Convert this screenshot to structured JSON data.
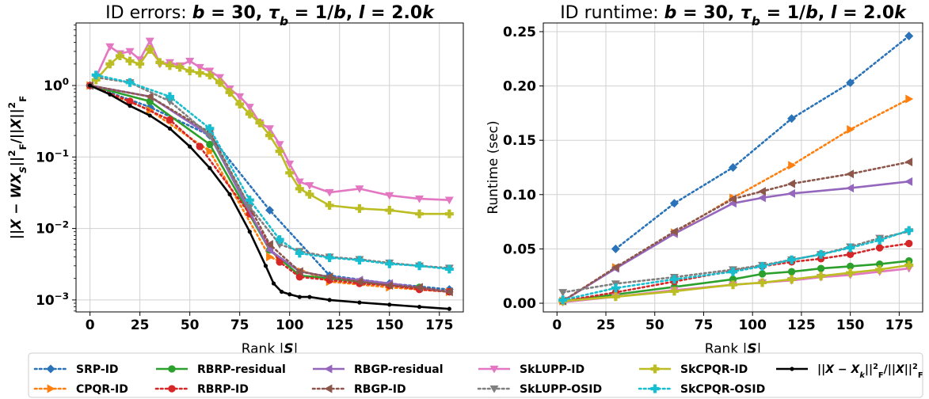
{
  "colors": {
    "SRP-ID": "#2a73b8",
    "CPQR-ID": "#ff7f0e",
    "RBRP-residual": "#2ca02c",
    "RBRP-ID": "#d62728",
    "RBGP-residual": "#9467bd",
    "RBGP-ID": "#8c564b",
    "SkLUPP-ID": "#e377c2",
    "SkLUPP-OSID": "#7f7f7f",
    "SkCPQR-ID": "#bcbd22",
    "SkCPQR-OSID": "#17becf",
    "Opt": "#000000"
  },
  "chart_data": [
    {
      "type": "line",
      "title_prefix": "ID errors: ",
      "title_math": "b = 30, τ_b = 1/b, l = 2.0k",
      "xlabel": "Rank |S|",
      "ylabel": "||X − WX_S||²_F/||X||²_F",
      "yscale": "log",
      "xlim": [
        -7,
        187
      ],
      "ylim": [
        0.00068,
        7.5
      ],
      "xticks": [
        0,
        25,
        50,
        75,
        100,
        125,
        150,
        175
      ],
      "yticks": [
        0.001,
        0.01,
        0.1,
        1
      ],
      "ytick_labels": [
        "10⁻³",
        "10⁻²",
        "10⁻¹",
        "10⁰"
      ],
      "grid": true,
      "series": [
        {
          "key": "SRP-ID",
          "name": "SRP-ID",
          "style": "dotted",
          "marker": "D",
          "x": [
            0,
            30,
            60,
            90,
            120,
            150,
            180
          ],
          "y": [
            1.0,
            0.5,
            0.2,
            0.018,
            0.0022,
            0.0017,
            0.0014
          ]
        },
        {
          "key": "CPQR-ID",
          "name": "CPQR-ID",
          "style": "dotted",
          "marker": "triR",
          "x": [
            0,
            30,
            60,
            90,
            120,
            150,
            180
          ],
          "y": [
            1.0,
            0.45,
            0.12,
            0.004,
            0.0018,
            0.0015,
            0.0013
          ]
        },
        {
          "key": "RBRP-residual",
          "name": "RBRP-residual",
          "style": "solid",
          "marker": "o",
          "x": [
            0,
            30,
            60,
            90,
            105,
            120,
            135,
            150,
            165,
            180
          ],
          "y": [
            1.0,
            0.6,
            0.15,
            0.005,
            0.0022,
            0.002,
            0.0018,
            0.0016,
            0.0015,
            0.0013
          ]
        },
        {
          "key": "RBRP-ID",
          "name": "RBRP-ID",
          "style": "dotted",
          "marker": "o",
          "x": [
            0,
            20,
            40,
            55,
            80,
            95,
            105,
            120,
            135,
            150,
            165,
            180
          ],
          "y": [
            1.0,
            0.6,
            0.33,
            0.14,
            0.016,
            0.0034,
            0.0021,
            0.0019,
            0.0017,
            0.0016,
            0.0014,
            0.0013
          ]
        },
        {
          "key": "RBGP-residual",
          "name": "RBGP-residual",
          "style": "solid",
          "marker": "triL",
          "x": [
            0,
            30,
            60,
            90,
            105,
            120,
            135,
            150,
            165,
            180
          ],
          "y": [
            1.0,
            0.7,
            0.2,
            0.005,
            0.0025,
            0.0021,
            0.0019,
            0.0017,
            0.0015,
            0.0013
          ]
        },
        {
          "key": "RBGP-ID",
          "name": "RBGP-ID",
          "style": "dotted",
          "marker": "triL",
          "x": [
            0,
            30,
            60,
            90,
            105,
            120,
            135,
            150,
            165,
            180
          ],
          "y": [
            1.0,
            0.7,
            0.22,
            0.006,
            0.0025,
            0.0021,
            0.0018,
            0.0016,
            0.0015,
            0.0013
          ]
        },
        {
          "key": "SkLUPP-ID",
          "name": "SkLUPP-ID",
          "style": "solid",
          "marker": "v",
          "x": [
            3,
            10,
            15,
            20,
            25,
            30,
            35,
            40,
            45,
            50,
            55,
            60,
            65,
            70,
            75,
            80,
            85,
            90,
            95,
            100,
            105,
            110,
            120,
            135,
            150,
            165,
            180
          ],
          "y": [
            1.3,
            3.5,
            2.8,
            3.0,
            2.3,
            4.2,
            2.0,
            2.1,
            1.9,
            2.2,
            1.8,
            1.6,
            1.3,
            0.9,
            0.7,
            0.5,
            0.3,
            0.25,
            0.15,
            0.08,
            0.045,
            0.04,
            0.032,
            0.036,
            0.029,
            0.026,
            0.025
          ]
        },
        {
          "key": "SkLUPP-OSID",
          "name": "SkLUPP-OSID",
          "style": "dotted",
          "marker": "v",
          "x": [
            3,
            20,
            40,
            60,
            80,
            95,
            105,
            120,
            135,
            150,
            165,
            180
          ],
          "y": [
            1.3,
            1.1,
            0.6,
            0.2,
            0.02,
            0.006,
            0.0048,
            0.004,
            0.0037,
            0.0033,
            0.003,
            0.0028
          ]
        },
        {
          "key": "SkCPQR-ID",
          "name": "SkCPQR-ID",
          "style": "solid",
          "marker": "P",
          "x": [
            3,
            10,
            15,
            20,
            25,
            30,
            35,
            40,
            45,
            50,
            55,
            60,
            65,
            70,
            75,
            80,
            85,
            90,
            95,
            100,
            105,
            110,
            120,
            135,
            150,
            165,
            180
          ],
          "y": [
            1.2,
            2.0,
            2.6,
            2.2,
            2.0,
            3.2,
            2.1,
            1.9,
            1.8,
            1.6,
            1.5,
            1.4,
            1.1,
            0.8,
            0.55,
            0.4,
            0.3,
            0.2,
            0.12,
            0.06,
            0.036,
            0.03,
            0.021,
            0.019,
            0.018,
            0.016,
            0.016
          ]
        },
        {
          "key": "SkCPQR-OSID",
          "name": "SkCPQR-OSID",
          "style": "dotted",
          "marker": "P",
          "x": [
            3,
            20,
            40,
            60,
            80,
            95,
            105,
            120,
            135,
            150,
            165,
            180
          ],
          "y": [
            1.4,
            1.1,
            0.7,
            0.25,
            0.025,
            0.007,
            0.0045,
            0.0039,
            0.0036,
            0.0032,
            0.003,
            0.0027
          ]
        },
        {
          "key": "Opt",
          "name": "||X − X_k||²_F/||X||²_F",
          "style": "solid",
          "marker": "dot",
          "x": [
            0,
            10,
            20,
            30,
            40,
            50,
            60,
            70,
            80,
            88,
            92,
            96,
            100,
            105,
            110,
            120,
            135,
            150,
            165,
            180
          ],
          "y": [
            1.0,
            0.75,
            0.52,
            0.38,
            0.25,
            0.14,
            0.07,
            0.03,
            0.009,
            0.003,
            0.0017,
            0.0013,
            0.0012,
            0.0011,
            0.0011,
            0.001,
            0.00092,
            0.00086,
            0.0008,
            0.00075
          ]
        }
      ]
    },
    {
      "type": "line",
      "title_prefix": "ID runtime: ",
      "title_math": "b = 30, τ_b = 1/b, l = 2.0k",
      "xlabel": "Rank |S|",
      "ylabel": "Runtime (sec)",
      "yscale": "linear",
      "xlim": [
        -7,
        187
      ],
      "ylim": [
        -0.008,
        0.258
      ],
      "xticks": [
        0,
        25,
        50,
        75,
        100,
        125,
        150,
        175
      ],
      "yticks": [
        0,
        0.05,
        0.1,
        0.15,
        0.2,
        0.25
      ],
      "ytick_labels": [
        "0.00",
        "0.05",
        "0.10",
        "0.15",
        "0.20",
        "0.25"
      ],
      "grid": true,
      "series": [
        {
          "key": "SRP-ID",
          "style": "dotted",
          "marker": "D",
          "x": [
            30,
            60,
            90,
            120,
            150,
            180
          ],
          "y": [
            0.05,
            0.092,
            0.125,
            0.17,
            0.203,
            0.246
          ]
        },
        {
          "key": "CPQR-ID",
          "style": "dotted",
          "marker": "triR",
          "x": [
            3,
            30,
            60,
            90,
            120,
            150,
            180
          ],
          "y": [
            0.002,
            0.033,
            0.065,
            0.097,
            0.127,
            0.16,
            0.188
          ]
        },
        {
          "key": "RBRP-residual",
          "style": "solid",
          "marker": "o",
          "x": [
            3,
            30,
            60,
            90,
            105,
            120,
            135,
            150,
            165,
            180
          ],
          "y": [
            0.002,
            0.008,
            0.015,
            0.022,
            0.027,
            0.029,
            0.032,
            0.034,
            0.036,
            0.039
          ]
        },
        {
          "key": "RBRP-ID",
          "style": "dotted",
          "marker": "o",
          "x": [
            3,
            30,
            60,
            90,
            105,
            120,
            135,
            150,
            165,
            180
          ],
          "y": [
            0.002,
            0.01,
            0.02,
            0.03,
            0.034,
            0.038,
            0.041,
            0.045,
            0.051,
            0.055
          ]
        },
        {
          "key": "RBGP-residual",
          "style": "solid",
          "marker": "triL",
          "x": [
            3,
            30,
            60,
            90,
            105,
            120,
            150,
            180
          ],
          "y": [
            0.002,
            0.032,
            0.064,
            0.092,
            0.097,
            0.101,
            0.106,
            0.112
          ]
        },
        {
          "key": "RBGP-ID",
          "style": "dotted",
          "marker": "triL",
          "x": [
            3,
            30,
            60,
            90,
            105,
            120,
            150,
            180
          ],
          "y": [
            0.002,
            0.033,
            0.066,
            0.096,
            0.103,
            0.11,
            0.119,
            0.13
          ]
        },
        {
          "key": "SkLUPP-ID",
          "style": "solid",
          "marker": "v",
          "x": [
            3,
            30,
            60,
            90,
            105,
            120,
            135,
            150,
            165,
            180
          ],
          "y": [
            0.001,
            0.006,
            0.012,
            0.017,
            0.019,
            0.021,
            0.024,
            0.026,
            0.029,
            0.032
          ]
        },
        {
          "key": "SkLUPP-OSID",
          "style": "dotted",
          "marker": "v",
          "x": [
            3,
            30,
            60,
            90,
            105,
            120,
            135,
            150,
            165,
            180
          ],
          "y": [
            0.01,
            0.018,
            0.024,
            0.031,
            0.035,
            0.04,
            0.045,
            0.052,
            0.06,
            0.066
          ]
        },
        {
          "key": "SkCPQR-ID",
          "style": "solid",
          "marker": "P",
          "x": [
            3,
            30,
            60,
            90,
            105,
            120,
            135,
            150,
            165,
            180
          ],
          "y": [
            0.002,
            0.006,
            0.011,
            0.017,
            0.019,
            0.022,
            0.025,
            0.028,
            0.031,
            0.035
          ]
        },
        {
          "key": "SkCPQR-OSID",
          "style": "dotted",
          "marker": "P",
          "x": [
            3,
            30,
            60,
            90,
            105,
            120,
            135,
            150,
            165,
            180
          ],
          "y": [
            0.003,
            0.014,
            0.022,
            0.029,
            0.034,
            0.04,
            0.045,
            0.051,
            0.058,
            0.067
          ]
        }
      ]
    }
  ],
  "legend": {
    "placement": "bottom",
    "entries": [
      {
        "key": "SRP-ID",
        "label": "SRP-ID",
        "style": "dotted",
        "marker": "D"
      },
      {
        "key": "CPQR-ID",
        "label": "CPQR-ID",
        "style": "dotted",
        "marker": "triR"
      },
      {
        "key": "RBRP-residual",
        "label": "RBRP-residual",
        "style": "solid",
        "marker": "o"
      },
      {
        "key": "RBRP-ID",
        "label": "RBRP-ID",
        "style": "dotted",
        "marker": "o"
      },
      {
        "key": "RBGP-residual",
        "label": "RBGP-residual",
        "style": "solid",
        "marker": "triL"
      },
      {
        "key": "RBGP-ID",
        "label": "RBGP-ID",
        "style": "dotted",
        "marker": "triL"
      },
      {
        "key": "SkLUPP-ID",
        "label": "SkLUPP-ID",
        "style": "solid",
        "marker": "v"
      },
      {
        "key": "SkLUPP-OSID",
        "label": "SkLUPP-OSID",
        "style": "dotted",
        "marker": "v"
      },
      {
        "key": "SkCPQR-ID",
        "label": "SkCPQR-ID",
        "style": "solid",
        "marker": "P"
      },
      {
        "key": "SkCPQR-OSID",
        "label": "SkCPQR-OSID",
        "style": "dotted",
        "marker": "P"
      },
      {
        "key": "Opt",
        "label": "||X − X_k||²_F/||X||²_F",
        "style": "solid",
        "marker": "dot"
      }
    ]
  }
}
